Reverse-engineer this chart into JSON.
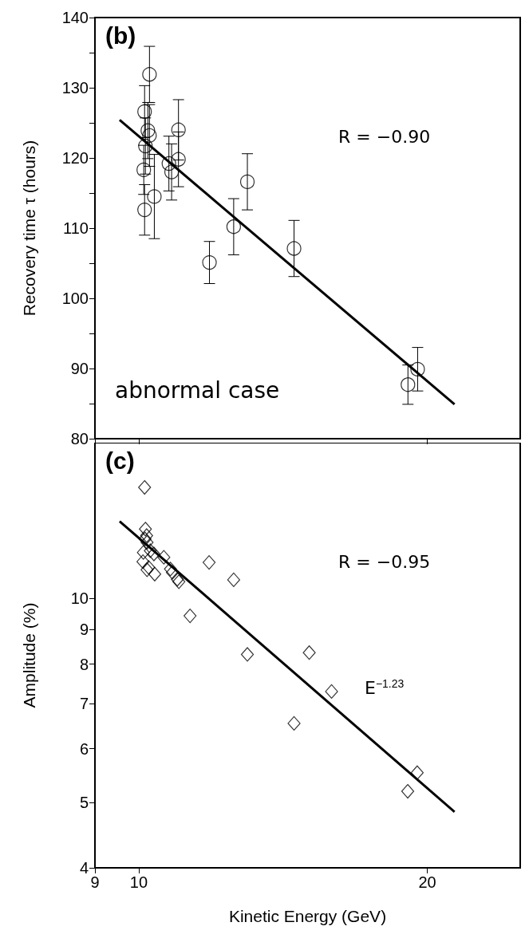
{
  "chart_data": [
    {
      "type": "scatter",
      "title": "(b)",
      "ylabel": "Recovery time τ (hours)",
      "annotations": [
        "R = −0.90",
        "abnormal case"
      ],
      "log": "x",
      "xlim": [
        9,
        25
      ],
      "xticks": [
        9,
        10,
        20
      ],
      "ylim": [
        80,
        140
      ],
      "yticks": [
        80,
        {
          "value": 85,
          "label": null
        },
        90,
        {
          "value": 95,
          "label": null
        },
        100,
        {
          "value": 105,
          "label": null
        },
        110,
        {
          "value": 115,
          "label": null
        },
        120,
        {
          "value": 125,
          "label": null
        },
        130,
        {
          "value": 135,
          "label": null
        },
        140
      ],
      "tick_labels": "y",
      "series": [
        {
          "color": "#000000",
          "marker": "circle",
          "x": [
            10.26,
            10.14,
            10.22,
            10.26,
            10.16,
            10.12,
            10.14,
            10.38,
            10.75,
            10.82,
            11.0,
            11.0,
            11.85,
            12.56,
            12.98,
            14.52,
            19.09,
            19.54
          ],
          "values": [
            131.9,
            126.6,
            123.9,
            123.2,
            121.7,
            118.3,
            112.6,
            114.5,
            119.2,
            118.0,
            119.8,
            124.0,
            105.1,
            110.2,
            116.6,
            107.1,
            87.7,
            89.9
          ],
          "errors": [
            4,
            3.7,
            4,
            4.4,
            4,
            3.5,
            3.6,
            6,
            3.9,
            4,
            3.9,
            4.3,
            3,
            4,
            4,
            4,
            2.8,
            3.1
          ]
        },
        {
          "type": "line",
          "color": "#000000",
          "marker": "none",
          "x": [
            9.55,
            21.35
          ],
          "values": [
            125.4,
            84.9
          ]
        }
      ]
    },
    {
      "type": "scatter",
      "title": "(c)",
      "xlabel": "Kinetic Energy (GeV)",
      "ylabel": "Amplitude (%)",
      "annotations": [
        "R = −0.95",
        "E$^{−1.23}$"
      ],
      "log": "xy",
      "xlim": [
        9,
        25
      ],
      "xticks": [
        9,
        10,
        20
      ],
      "ylim": [
        4,
        17
      ],
      "yticks": [
        4,
        5,
        6,
        7,
        8,
        9,
        10
      ],
      "series": [
        {
          "color": "#000000",
          "marker": "diamond",
          "x": [
            10.14,
            10.16,
            10.19,
            10.15,
            10.2,
            10.28,
            10.37,
            10.11,
            10.62,
            10.1,
            10.2,
            10.24,
            10.39,
            10.79,
            10.84,
            10.97,
            11.01,
            11.84,
            12.56,
            11.31,
            12.98,
            15.06,
            15.89,
            14.52,
            19.52,
            19.08
          ],
          "values": [
            14.6,
            12.67,
            12.39,
            12.25,
            12.11,
            11.77,
            11.64,
            11.7,
            11.51,
            11.34,
            11.03,
            11.12,
            10.87,
            11.06,
            10.93,
            10.68,
            10.59,
            11.31,
            10.66,
            9.43,
            8.27,
            8.32,
            7.29,
            6.54,
            5.53,
            5.19
          ]
        },
        {
          "type": "line",
          "color": "#000000",
          "marker": "none",
          "x": [
            9.55,
            21.35
          ],
          "values": [
            13.01,
            4.84
          ]
        }
      ]
    }
  ]
}
